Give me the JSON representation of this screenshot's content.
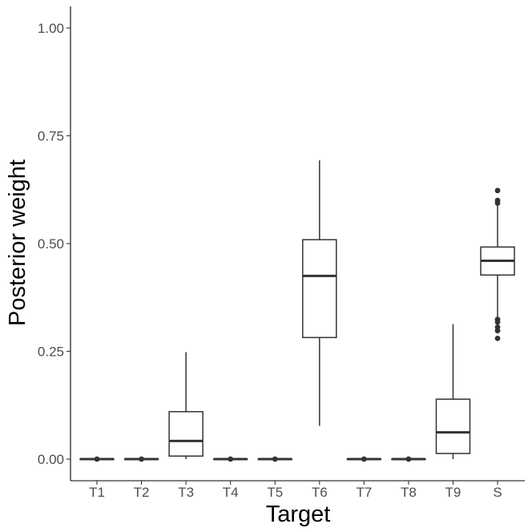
{
  "chart_data": {
    "type": "boxplot",
    "title": "",
    "xlabel": "Target",
    "ylabel": "Posterior weight",
    "ylim": [
      -0.05,
      1.04
    ],
    "yticks": [
      0.0,
      0.25,
      0.5,
      0.75,
      1.0
    ],
    "ytick_labels": [
      "0.00",
      "0.25",
      "0.50",
      "0.75",
      "1.00"
    ],
    "grid": false,
    "legend": "none",
    "categories": [
      "T1",
      "T2",
      "T3",
      "T4",
      "T5",
      "T6",
      "T7",
      "T8",
      "T9",
      "S"
    ],
    "boxes": [
      {
        "q1": 0.0,
        "median": 0.0,
        "q3": 0.0,
        "whisker_low": 0.0,
        "whisker_high": 0.0,
        "outliers": [
          0.0
        ]
      },
      {
        "q1": 0.0,
        "median": 0.0,
        "q3": 0.0,
        "whisker_low": 0.0,
        "whisker_high": 0.0,
        "outliers": [
          0.0
        ]
      },
      {
        "q1": 0.007,
        "median": 0.042,
        "q3": 0.11,
        "whisker_low": 0.0,
        "whisker_high": 0.248,
        "outliers": []
      },
      {
        "q1": 0.0,
        "median": 0.0,
        "q3": 0.0,
        "whisker_low": 0.0,
        "whisker_high": 0.0,
        "outliers": [
          0.0
        ]
      },
      {
        "q1": 0.0,
        "median": 0.0,
        "q3": 0.0,
        "whisker_low": 0.0,
        "whisker_high": 0.0,
        "outliers": [
          0.0
        ]
      },
      {
        "q1": 0.282,
        "median": 0.425,
        "q3": 0.509,
        "whisker_low": 0.077,
        "whisker_high": 0.693,
        "outliers": []
      },
      {
        "q1": 0.0,
        "median": 0.0,
        "q3": 0.0,
        "whisker_low": 0.0,
        "whisker_high": 0.0,
        "outliers": [
          0.0
        ]
      },
      {
        "q1": 0.0,
        "median": 0.0,
        "q3": 0.0,
        "whisker_low": 0.0,
        "whisker_high": 0.0,
        "outliers": [
          0.0
        ]
      },
      {
        "q1": 0.013,
        "median": 0.062,
        "q3": 0.139,
        "whisker_low": 0.0,
        "whisker_high": 0.313,
        "outliers": []
      },
      {
        "q1": 0.427,
        "median": 0.46,
        "q3": 0.492,
        "whisker_low": 0.328,
        "whisker_high": 0.59,
        "outliers": [
          0.623,
          0.6,
          0.594,
          0.324,
          0.318,
          0.306,
          0.298,
          0.28
        ]
      }
    ],
    "colors": {
      "box_fill": "#ffffff",
      "box_line": "#333333",
      "axis": "#000000",
      "tick_text": "#4d4d4d"
    }
  }
}
